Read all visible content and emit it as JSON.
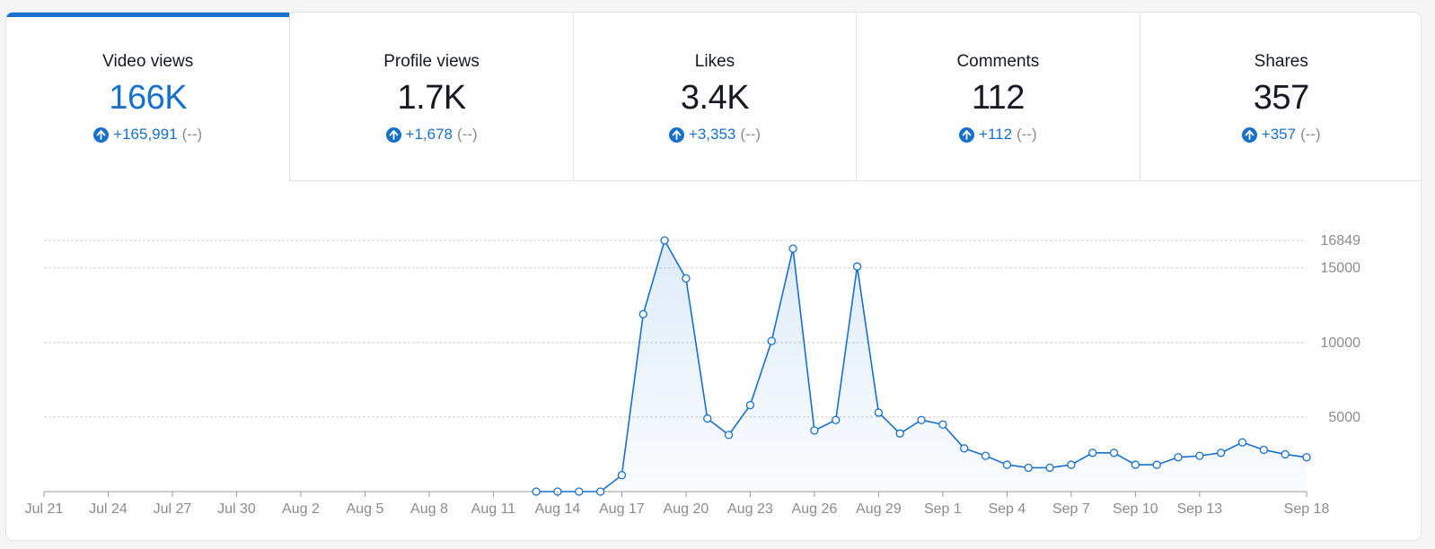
{
  "tabs": [
    {
      "label": "Video views",
      "value": "166K",
      "delta": "+165,991",
      "prev": "(--)",
      "active": true
    },
    {
      "label": "Profile views",
      "value": "1.7K",
      "delta": "+1,678",
      "prev": "(--)",
      "active": false
    },
    {
      "label": "Likes",
      "value": "3.4K",
      "delta": "+3,353",
      "prev": "(--)",
      "active": false
    },
    {
      "label": "Comments",
      "value": "112",
      "delta": "+112",
      "prev": "(--)",
      "active": false
    },
    {
      "label": "Shares",
      "value": "357",
      "delta": "+357",
      "prev": "(--)",
      "active": false
    }
  ],
  "colors": {
    "accent": "#1670cc",
    "text": "#161823",
    "muted": "#8a8b91",
    "grid": "#cfcfcf"
  },
  "chart_data": {
    "type": "area",
    "x_dates": [
      "Aug 13",
      "Aug 14",
      "Aug 15",
      "Aug 16",
      "Aug 17",
      "Aug 18",
      "Aug 19",
      "Aug 20",
      "Aug 21",
      "Aug 22",
      "Aug 23",
      "Aug 24",
      "Aug 25",
      "Aug 26",
      "Aug 27",
      "Aug 28",
      "Aug 29",
      "Aug 30",
      "Aug 31",
      "Sep 1",
      "Sep 2",
      "Sep 3",
      "Sep 4",
      "Sep 5",
      "Sep 6",
      "Sep 7",
      "Sep 8",
      "Sep 9",
      "Sep 10",
      "Sep 11",
      "Sep 12",
      "Sep 13",
      "Sep 14",
      "Sep 15",
      "Sep 16",
      "Sep 17",
      "Sep 18"
    ],
    "values": [
      0,
      0,
      0,
      0,
      1100,
      11900,
      16849,
      14300,
      4900,
      3800,
      5800,
      10100,
      16300,
      4100,
      4800,
      15100,
      5300,
      3900,
      4800,
      4500,
      2900,
      2400,
      1800,
      1600,
      1600,
      1800,
      2600,
      2600,
      1800,
      1800,
      2300,
      2400,
      2600,
      3300,
      2800,
      2500,
      2300
    ],
    "x_ticks": [
      "Jul 21",
      "Jul 24",
      "Jul 27",
      "Jul 30",
      "Aug 2",
      "Aug 5",
      "Aug 8",
      "Aug 11",
      "Aug 14",
      "Aug 17",
      "Aug 20",
      "Aug 23",
      "Aug 26",
      "Aug 29",
      "Sep 1",
      "Sep 4",
      "Sep 7",
      "Sep 10",
      "Sep 13",
      "Sep 18"
    ],
    "x_range": [
      "Jul 21",
      "Sep 18"
    ],
    "y_ticks": [
      5000,
      10000,
      15000,
      16849
    ],
    "ylim": [
      0,
      16849
    ],
    "grid": true,
    "legend": "none"
  }
}
